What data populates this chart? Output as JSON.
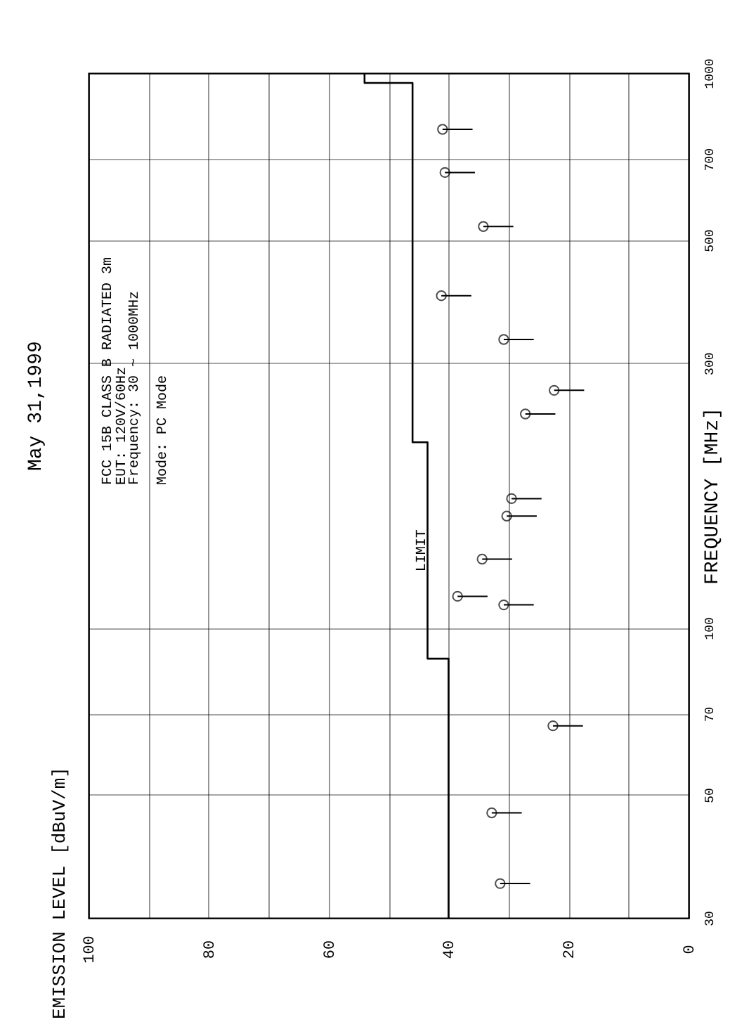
{
  "chart_data": {
    "type": "scatter",
    "subtitle": "May 31,1999",
    "title": "EMISSION LEVEL [dBuV/m]",
    "ylabel": "FREQUENCY [MHz]",
    "log": "y",
    "ylim": [
      30,
      1000
    ],
    "yticks": [
      30,
      50,
      70,
      100,
      300,
      500,
      700,
      1000
    ],
    "xlim": [
      100,
      0
    ],
    "xticks": [
      100,
      {
        "value": 90,
        "label": null
      },
      80,
      {
        "value": 70,
        "label": null
      },
      60,
      {
        "value": 50,
        "label": null
      },
      40,
      {
        "value": 30,
        "label": null
      },
      20,
      {
        "value": 10,
        "label": null
      },
      0
    ],
    "grid": true,
    "marker": "circle",
    "annotations": [
      "FCC 15B CLASS B RADIATED 3m",
      "EUT: 120V/60Hz",
      "Frequency: 30 ~ 1000MHz",
      "Mode: PC Mode"
    ],
    "series": [
      {
        "color": "#000000",
        "x": [
          31.4,
          32.8,
          22.6,
          30.8,
          38.5,
          34.4,
          30.3,
          29.5,
          27.2,
          22.4,
          30.8,
          41.2,
          34.2,
          40.6,
          41.0
        ],
        "values": [
          34.6,
          46.4,
          66.6,
          110,
          114,
          133,
          159,
          171,
          243,
          268,
          331,
          397,
          529,
          662,
          792
        ],
        "xerrors": [
          [
            26.4,
            31.4
          ],
          [
            27.8,
            32.8
          ],
          [
            17.6,
            22.6
          ],
          [
            25.8,
            30.8
          ],
          [
            33.5,
            38.5
          ],
          [
            29.4,
            34.4
          ],
          [
            25.3,
            30.3
          ],
          [
            24.5,
            29.5
          ],
          [
            22.2,
            27.2
          ],
          [
            17.4,
            22.4
          ],
          [
            25.8,
            30.8
          ],
          [
            36.2,
            41.2
          ],
          [
            29.2,
            34.2
          ],
          [
            35.6,
            40.6
          ],
          [
            36.0,
            41.0
          ]
        ]
      },
      {
        "type": "line",
        "name": "LIMIT",
        "marker": "none",
        "color": "#000000",
        "x": [
          40,
          40,
          43.5,
          43.5,
          46,
          46,
          54,
          54
        ],
        "values": [
          30,
          88,
          88,
          216,
          216,
          960,
          960,
          1000
        ]
      }
    ]
  }
}
